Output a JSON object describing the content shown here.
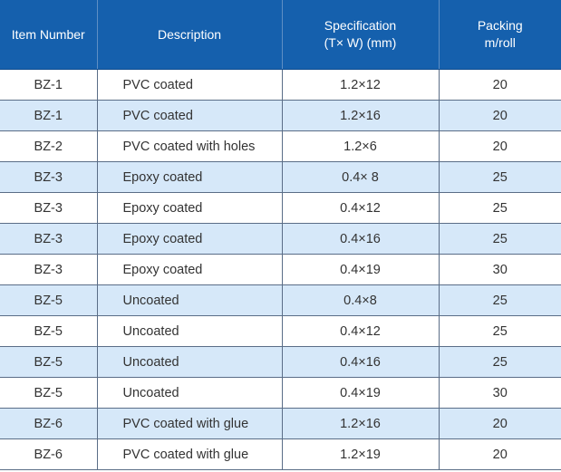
{
  "table": {
    "headers": [
      {
        "lines": [
          "Item Number"
        ]
      },
      {
        "lines": [
          "Description"
        ]
      },
      {
        "lines": [
          "Specification",
          "(T× W) (mm)"
        ]
      },
      {
        "lines": [
          "Packing",
          "m/roll"
        ]
      }
    ],
    "rows": [
      {
        "item": "BZ-1",
        "description": "PVC coated",
        "spec": "1.2×12",
        "packing": "20"
      },
      {
        "item": "BZ-1",
        "description": "PVC coated",
        "spec": "1.2×16",
        "packing": "20"
      },
      {
        "item": "BZ-2",
        "description": "PVC coated with holes",
        "spec": "1.2×6",
        "packing": "20"
      },
      {
        "item": "BZ-3",
        "description": "Epoxy coated",
        "spec": "0.4× 8",
        "packing": "25"
      },
      {
        "item": "BZ-3",
        "description": "Epoxy coated",
        "spec": "0.4×12",
        "packing": "25"
      },
      {
        "item": "BZ-3",
        "description": "Epoxy coated",
        "spec": "0.4×16",
        "packing": "25"
      },
      {
        "item": "BZ-3",
        "description": "Epoxy coated",
        "spec": "0.4×19",
        "packing": "30"
      },
      {
        "item": "BZ-5",
        "description": "Uncoated",
        "spec": "0.4×8",
        "packing": "25"
      },
      {
        "item": "BZ-5",
        "description": "Uncoated",
        "spec": "0.4×12",
        "packing": "25"
      },
      {
        "item": "BZ-5",
        "description": "Uncoated",
        "spec": "0.4×16",
        "packing": "25"
      },
      {
        "item": "BZ-5",
        "description": "Uncoated",
        "spec": "0.4×19",
        "packing": "30"
      },
      {
        "item": "BZ-6",
        "description": "PVC coated with glue",
        "spec": "1.2×16",
        "packing": "20"
      },
      {
        "item": "BZ-6",
        "description": "PVC coated with glue",
        "spec": "1.2×19",
        "packing": "20"
      }
    ]
  },
  "colors": {
    "header_bg": "#1560ad",
    "header_text": "#ffffff",
    "stripe_bg": "#d6e8f9",
    "grid_line": "#5a6d87",
    "cell_text": "#333333"
  }
}
